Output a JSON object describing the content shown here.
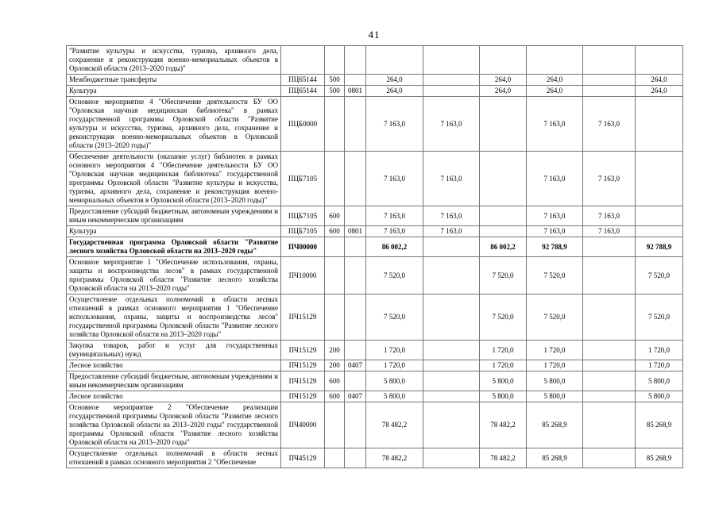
{
  "page": {
    "number": "41"
  },
  "table": {
    "columns": [
      "description",
      "target-article-code",
      "expense-type-code",
      "section-code",
      "amount-1",
      "amount-2",
      "amount-3",
      "amount-4",
      "amount-5",
      "amount-6"
    ],
    "border_color": "#757575",
    "rows": [
      {
        "desc": "\"Развитие культуры и искусства, туризма, архивного дела, сохранение и реконструкция военно-мемориальных объектов в Орловской области (2013–2020 годы)\"",
        "code": "",
        "vr": "",
        "rz": "",
        "bold": false,
        "v": [
          "",
          "",
          "",
          "",
          "",
          ""
        ]
      },
      {
        "desc": "Межбюджетные трансферты",
        "code": "ПЦ65144",
        "vr": "500",
        "rz": "",
        "bold": false,
        "v": [
          "264,0",
          "",
          "264,0",
          "264,0",
          "",
          "264,0"
        ]
      },
      {
        "desc": "Культура",
        "code": "ПЦ65144",
        "vr": "500",
        "rz": "0801",
        "bold": false,
        "v": [
          "264,0",
          "",
          "264,0",
          "264,0",
          "",
          "264,0"
        ]
      },
      {
        "desc": "Основное мероприятие 4 \"Обеспечение деятельности БУ ОО \"Орловская научная медицинская библиотека\" в рамках государственной программы Орловской области \"Развитие культуры и искусства, туризма, архивного дела, сохранение и реконструкция военно-мемориальных объектов в Орловской области (2013–2020 годы)\"",
        "code": "ПЦБ0000",
        "vr": "",
        "rz": "",
        "bold": false,
        "v": [
          "7 163,0",
          "7 163,0",
          "",
          "7 163,0",
          "7 163,0",
          ""
        ]
      },
      {
        "desc": "Обеспечение деятельности (оказание услуг) библиотек в рамках основного мероприятия 4 \"Обеспечение деятельности БУ ОО \"Орловская научная медицинская библиотека\" государственной программы Орловской области \"Развитие культуры и искусства, туризма, архивного дела, сохранение и реконструкция военно-мемориальных объектов в Орловской области (2013–2020 годы)\"",
        "code": "ПЦБ7105",
        "vr": "",
        "rz": "",
        "bold": false,
        "v": [
          "7 163,0",
          "7 163,0",
          "",
          "7 163,0",
          "7 163,0",
          ""
        ]
      },
      {
        "desc": "Предоставление субсидий бюджетным, автономным учреждениям и иным некоммерческим организациям",
        "code": "ПЦБ7105",
        "vr": "600",
        "rz": "",
        "bold": false,
        "v": [
          "7 163,0",
          "7 163,0",
          "",
          "7 163,0",
          "7 163,0",
          ""
        ]
      },
      {
        "desc": "Культура",
        "code": "ПЦБ7105",
        "vr": "600",
        "rz": "0801",
        "bold": false,
        "v": [
          "7 163,0",
          "7 163,0",
          "",
          "7 163,0",
          "7 163,0",
          ""
        ]
      },
      {
        "desc": "Государственная программа Орловской области \"Развитие лесного хозяйства Орловской области на 2013–2020 годы\"",
        "code": "ПЧ00000",
        "vr": "",
        "rz": "",
        "bold": true,
        "v": [
          "86 002,2",
          "",
          "86 002,2",
          "92 788,9",
          "",
          "92 788,9"
        ]
      },
      {
        "desc": "Основное мероприятие 1 \"Обеспечение использования, охраны, защиты и воспроизводства лесов\" в рамках государственной программы Орловской области \"Развитие лесного хозяйства Орловской области на 2013–2020 годы\"",
        "code": "ПЧ10000",
        "vr": "",
        "rz": "",
        "bold": false,
        "v": [
          "7 520,0",
          "",
          "7 520,0",
          "7 520,0",
          "",
          "7 520,0"
        ]
      },
      {
        "desc": "Осуществление отдельных полномочий в области лесных отношений в рамках основного мероприятия 1 \"Обеспечение использования, охраны, защиты и воспроизводства лесов\" государственной программы Орловской области \"Развитие лесного хозяйства Орловской области на 2013–2020 годы\"",
        "code": "ПЧ15129",
        "vr": "",
        "rz": "",
        "bold": false,
        "v": [
          "7 520,0",
          "",
          "7 520,0",
          "7 520,0",
          "",
          "7 520,0"
        ]
      },
      {
        "desc": "Закупка товаров, работ и услуг для государственных (муниципальных) нужд",
        "code": "ПЧ15129",
        "vr": "200",
        "rz": "",
        "bold": false,
        "v": [
          "1 720,0",
          "",
          "1 720,0",
          "1 720,0",
          "",
          "1 720,0"
        ]
      },
      {
        "desc": "Лесное хозяйство",
        "code": "ПЧ15129",
        "vr": "200",
        "rz": "0407",
        "bold": false,
        "v": [
          "1 720,0",
          "",
          "1 720,0",
          "1 720,0",
          "",
          "1 720,0"
        ]
      },
      {
        "desc": "Предоставление субсидий бюджетным, автономным учреждениям и иным некоммерческим организациям",
        "code": "ПЧ15129",
        "vr": "600",
        "rz": "",
        "bold": false,
        "v": [
          "5 800,0",
          "",
          "5 800,0",
          "5 800,0",
          "",
          "5 800,0"
        ]
      },
      {
        "desc": "Лесное хозяйство",
        "code": "ПЧ15129",
        "vr": "600",
        "rz": "0407",
        "bold": false,
        "v": [
          "5 800,0",
          "",
          "5 800,0",
          "5 800,0",
          "",
          "5 800,0"
        ]
      },
      {
        "desc": "Основное мероприятие 2 \"Обеспечение реализации государственной программы Орловской области \"Развитие лесного хозяйства Орловской области на 2013–2020 годы\" государственной программы Орловской области \"Развитие лесного хозяйства Орловской области на 2013–2020 годы\"",
        "code": "ПЧ40000",
        "vr": "",
        "rz": "",
        "bold": false,
        "v": [
          "78 482,2",
          "",
          "78 482,2",
          "85 268,9",
          "",
          "85 268,9"
        ]
      },
      {
        "desc": "Осуществление отдельных полномочий в области лесных отношений в рамках основного мероприятия 2 \"Обеспечение",
        "code": "ПЧ45129",
        "vr": "",
        "rz": "",
        "bold": false,
        "v": [
          "78 482,2",
          "",
          "78 482,2",
          "85 268,9",
          "",
          "85 268,9"
        ]
      }
    ]
  }
}
